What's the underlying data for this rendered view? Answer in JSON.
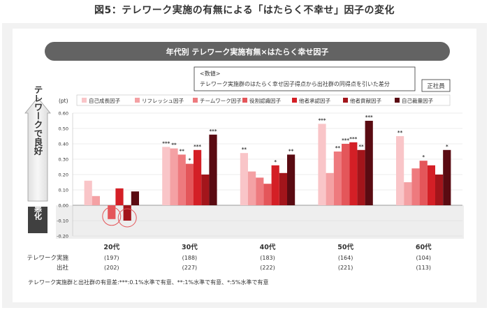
{
  "page_title": "図5：テレワーク実施の有無による「はたらく不幸せ」因子の変化",
  "banner_title": "年代別 テレワーク実施有無×はたらく幸せ因子",
  "note": {
    "line1": "<数値>",
    "line2": "テレワーク実施群のはたらく幸せ因子得点から出社群の同得点を引いた差分"
  },
  "employee_type_label": "正社員",
  "side_labels": {
    "good": "テレワークで良好",
    "bad": "悪化"
  },
  "row_labels": {
    "telework": "テレワーク実施",
    "office": "出社"
  },
  "footnote": "テレワーク実施群と出社群の有意差:***:0.1%水準で有意、**:1%水準で有意、*:5%水準で有意",
  "colors": {
    "series": [
      "#f9c5c8",
      "#f4a1a4",
      "#ee7a7e",
      "#e4565a",
      "#d41f26",
      "#a3151b",
      "#5a0b12"
    ],
    "banner": "#636363",
    "negative_zone": "#eeeeee",
    "circle": "#e4565a"
  },
  "chart_data": {
    "type": "bar",
    "title": "",
    "xlabel": "",
    "ylabel": "(pt)",
    "ylim": [
      -0.2,
      0.6
    ],
    "yticks": [
      "0.60",
      "0.50",
      "0.40",
      "0.30",
      "0.20",
      "0.10",
      "0.00",
      "-0.10",
      "-0.20"
    ],
    "ytick_values": [
      0.6,
      0.5,
      0.4,
      0.3,
      0.2,
      0.1,
      0.0,
      -0.1,
      -0.2
    ],
    "legend_position": "top",
    "categories": [
      "20代",
      "30代",
      "40代",
      "50代",
      "60代"
    ],
    "sample_sizes": {
      "telework": [
        "(197)",
        "(188)",
        "(183)",
        "(164)",
        "(104)"
      ],
      "office": [
        "(202)",
        "(227)",
        "(222)",
        "(221)",
        "(113)"
      ]
    },
    "series": [
      {
        "name": "自己成長因子",
        "values": [
          0.16,
          0.38,
          0.34,
          0.53,
          0.45
        ],
        "sig": [
          "",
          "***",
          "**",
          "***",
          "**"
        ]
      },
      {
        "name": "リフレッシュ因子",
        "values": [
          0.06,
          0.37,
          0.22,
          0.21,
          0.15
        ],
        "sig": [
          "",
          "**",
          "",
          "",
          ""
        ]
      },
      {
        "name": "チームワーク因子",
        "values": [
          0.0,
          0.33,
          0.18,
          0.35,
          0.24
        ],
        "sig": [
          "",
          "**",
          "",
          "**",
          ""
        ]
      },
      {
        "name": "役割認識因子",
        "values": [
          -0.09,
          0.27,
          0.14,
          0.4,
          0.29
        ],
        "sig": [
          "",
          "*",
          "",
          "***",
          "*"
        ]
      },
      {
        "name": "他者承認因子",
        "values": [
          0.11,
          0.36,
          0.26,
          0.41,
          0.26
        ],
        "sig": [
          "",
          "***",
          "*",
          "***",
          ""
        ]
      },
      {
        "name": "他者貢献因子",
        "values": [
          -0.1,
          0.2,
          0.21,
          0.36,
          0.2
        ],
        "sig": [
          "",
          "",
          "",
          "**",
          ""
        ]
      },
      {
        "name": "自己裁量因子",
        "values": [
          0.09,
          0.46,
          0.33,
          0.55,
          0.36
        ],
        "sig": [
          "",
          "***",
          "**",
          "***",
          "*"
        ]
      }
    ],
    "highlighted_negative": [
      {
        "category": "20代",
        "series": "役割認識因子"
      },
      {
        "category": "20代",
        "series": "他者貢献因子"
      }
    ]
  }
}
